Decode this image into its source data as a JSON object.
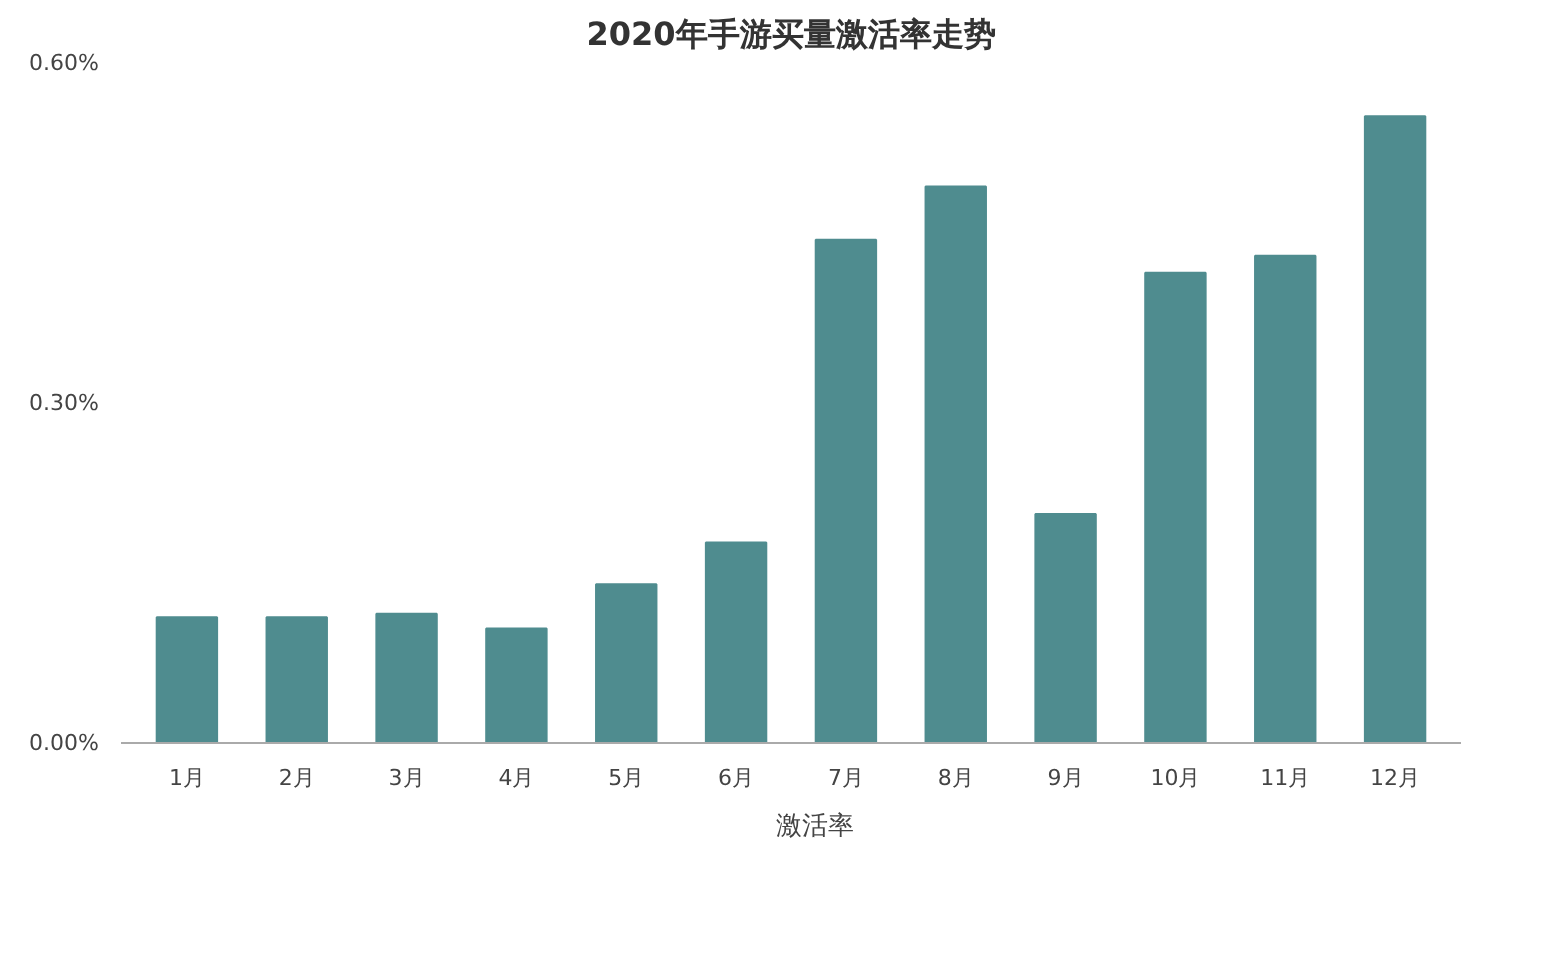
{
  "chart_data": {
    "type": "bar",
    "title": "2020年手游买量激活率走势",
    "categories": [
      "1月",
      "2月",
      "3月",
      "4月",
      "5月",
      "6月",
      "7月",
      "8月",
      "9月",
      "10月",
      "11月",
      "12月"
    ],
    "series": [
      {
        "name": "激活率",
        "color": "#4f8c8f",
        "values": [
          0.111,
          0.111,
          0.114,
          0.101,
          0.14,
          0.177,
          0.444,
          0.491,
          0.202,
          0.415,
          0.43,
          0.553
        ]
      }
    ],
    "ylim": [
      0,
      0.6
    ],
    "yticks": [
      {
        "value": 0,
        "label": "0.00%"
      },
      {
        "value": 0.3,
        "label": "0.30%"
      },
      {
        "value": 0.6,
        "label": "0.60%"
      }
    ],
    "grid": false,
    "legend": "bottom"
  }
}
